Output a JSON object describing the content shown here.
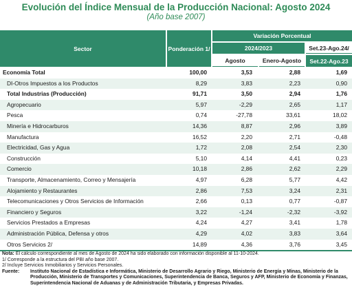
{
  "title": "Evolución del Índice Mensual de la Producción Nacional: Agosto 2024",
  "subtitle": "(Año base 2007)",
  "header": {
    "sector": "Sector",
    "ponderacion": "Ponderación 1/",
    "variacion": "Variación Porcentual",
    "periodo": "2024/2023",
    "sept_top": "Set.23-Ago.24/",
    "sept_bottom": "Set.22-Ago.23",
    "agosto": "Agosto",
    "enero_agosto": "Enero-Agosto"
  },
  "rows": [
    {
      "name": "Economía Total",
      "pond": "100,00",
      "ago": "3,53",
      "ene": "2,88",
      "set": "1,69",
      "level": 0,
      "bold": true,
      "hl": false
    },
    {
      "name": "DI-Otros Impuestos a los Productos",
      "pond": "8,29",
      "ago": "3,83",
      "ene": "2,23",
      "set": "0,90",
      "level": 1,
      "bold": false,
      "hl": true
    },
    {
      "name": "Total Industrias (Producción)",
      "pond": "91,71",
      "ago": "3,50",
      "ene": "2,94",
      "set": "1,76",
      "level": 1,
      "bold": true,
      "hl": false
    },
    {
      "name": "Agropecuario",
      "pond": "5,97",
      "ago": "-2,29",
      "ene": "2,65",
      "set": "1,17",
      "level": 2,
      "bold": false,
      "hl": true
    },
    {
      "name": "Pesca",
      "pond": "0,74",
      "ago": "-27,78",
      "ene": "33,61",
      "set": "18,02",
      "level": 2,
      "bold": false,
      "hl": false
    },
    {
      "name": "Minería e Hidrocarburos",
      "pond": "14,36",
      "ago": "8,87",
      "ene": "2,96",
      "set": "3,89",
      "level": 2,
      "bold": false,
      "hl": true
    },
    {
      "name": "Manufactura",
      "pond": "16,52",
      "ago": "2,20",
      "ene": "2,71",
      "set": "-0,48",
      "level": 2,
      "bold": false,
      "hl": false
    },
    {
      "name": "Electricidad, Gas y Agua",
      "pond": "1,72",
      "ago": "2,08",
      "ene": "2,54",
      "set": "2,30",
      "level": 2,
      "bold": false,
      "hl": true
    },
    {
      "name": "Construcción",
      "pond": "5,10",
      "ago": "4,14",
      "ene": "4,41",
      "set": "0,23",
      "level": 2,
      "bold": false,
      "hl": false
    },
    {
      "name": "Comercio",
      "pond": "10,18",
      "ago": "2,86",
      "ene": "2,62",
      "set": "2,29",
      "level": 2,
      "bold": false,
      "hl": true
    },
    {
      "name": "Transporte, Almacenamiento, Correo y Mensajería",
      "pond": "4,97",
      "ago": "6,28",
      "ene": "5,77",
      "set": "4,42",
      "level": 2,
      "bold": false,
      "hl": false
    },
    {
      "name": "Alojamiento y Restaurantes",
      "pond": "2,86",
      "ago": "7,53",
      "ene": "3,24",
      "set": "2,31",
      "level": 2,
      "bold": false,
      "hl": true
    },
    {
      "name": "Telecomunicaciones y Otros Servicios de Información",
      "pond": "2,66",
      "ago": "0,13",
      "ene": "0,77",
      "set": "-0,87",
      "level": 2,
      "bold": false,
      "hl": false
    },
    {
      "name": "Financiero y Seguros",
      "pond": "3,22",
      "ago": "-1,24",
      "ene": "-2,32",
      "set": "-3,92",
      "level": 2,
      "bold": false,
      "hl": true
    },
    {
      "name": "Servicios Prestados a Empresas",
      "pond": "4,24",
      "ago": "4,27",
      "ene": "3,41",
      "set": "1,78",
      "level": 2,
      "bold": false,
      "hl": false
    },
    {
      "name": "Administración Pública, Defensa y otros",
      "pond": "4,29",
      "ago": "4,02",
      "ene": "3,83",
      "set": "3,64",
      "level": 2,
      "bold": false,
      "hl": true
    },
    {
      "name": "Otros Servicios 2/",
      "pond": "14,89",
      "ago": "4,36",
      "ene": "3,76",
      "set": "3,45",
      "level": 2,
      "bold": false,
      "hl": false
    }
  ],
  "notes": {
    "nota_label": "Nota:",
    "nota_text": " El cálculo correspondiente al mes de Agosto de 2024 ha sido elaborado con información disponible al 11-10-2024.",
    "note1": "1/ Corresponde a la estructura del PBI año base 2007.",
    "note2": "2/ Incluye Servicios Inmobiliarios y Servicios Personales.",
    "fuente_label": "Fuente:",
    "fuente_text": "Instituto Nacional de Estadística e Informática, Ministerio de Desarrollo Agrario y Riego, Ministerio de Energía y Minas, Ministerio de la Producción, Ministerio de Transportes y Comunicaciones, Superintendencia de Banca, Seguros y AFP, Ministerio de Economía y Finanzas, Superintendencia Nacional de Aduanas y de Administración Tributaria, y Empresas Privadas."
  },
  "colors": {
    "accent": "#2f8a6a",
    "title": "#2e8b57",
    "row_highlight": "#e9f3ee"
  }
}
